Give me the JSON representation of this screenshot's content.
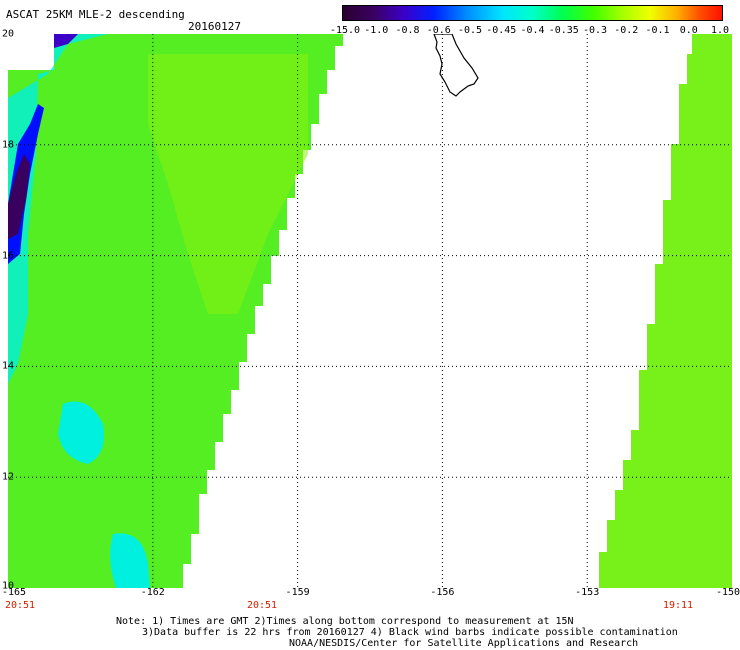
{
  "header": {
    "title": "ASCAT 25KM MLE-2 descending",
    "date": "20160127"
  },
  "colorbar": {
    "labels": [
      "-15.0",
      "-1.0",
      "-0.8",
      "-0.6",
      "-0.5",
      "-0.45",
      "-0.4",
      "-0.35",
      "-0.3",
      "-0.2",
      "-0.1",
      "0.0",
      "1.0"
    ],
    "colors": [
      "#2a0030",
      "#3c00c8",
      "#0020ff",
      "#0090ff",
      "#00e5ff",
      "#00ffc8",
      "#00ff50",
      "#40ff00",
      "#a8ff00",
      "#f0ff00",
      "#ffb000",
      "#ff5000",
      "#ff1000"
    ]
  },
  "map": {
    "lat_labels": [
      "20",
      "18",
      "16",
      "14",
      "12",
      "10"
    ],
    "lon_labels": [
      "-165",
      "-162",
      "-159",
      "-156",
      "-153",
      "-150"
    ],
    "time_labels": [
      "20:51",
      "20:51",
      "19:11"
    ],
    "lat_range": [
      10,
      20
    ],
    "lon_range": [
      -165,
      -150
    ],
    "swath_fill": "#55ee22",
    "low_fill": "#00f0e0",
    "very_low_fill": "#0010ff",
    "lowest_fill": "#3a0060"
  },
  "notes": {
    "line1": "Note: 1) Times are GMT 2)Times along bottom correspond to measurement at 15N",
    "line2": "3)Data buffer is 22 hrs from 20160127 4) Black wind barbs indicate possible contamination",
    "line3": "NOAA/NESDIS/Center for Satellite Applications and Research"
  }
}
